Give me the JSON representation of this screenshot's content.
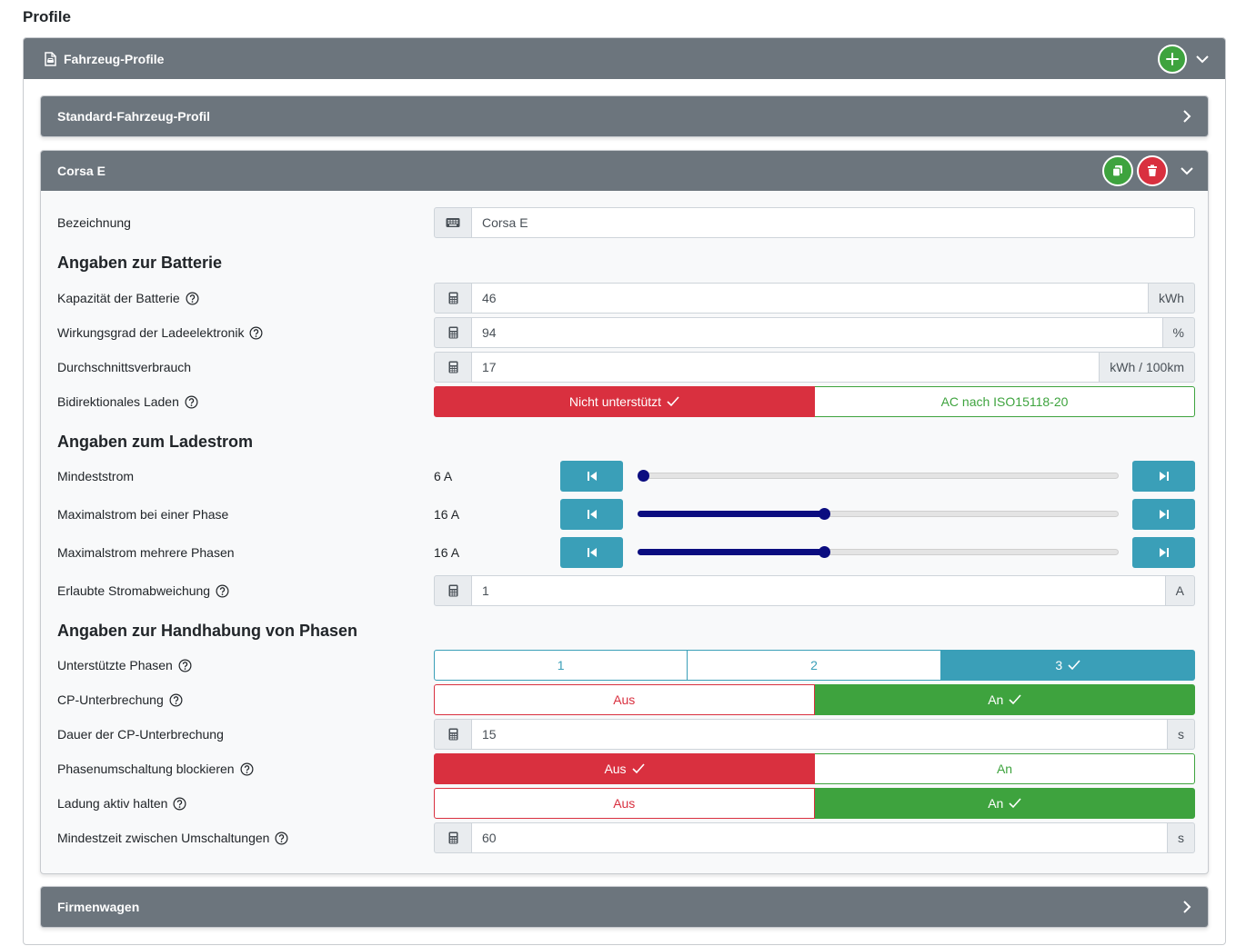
{
  "page": {
    "title": "Profile"
  },
  "vehicle_profiles": {
    "title": "Fahrzeug-Profile",
    "icons": {
      "header": "document-car-icon",
      "add": "plus-icon",
      "collapse": "chevron-down-icon"
    }
  },
  "standard_profile": {
    "title": "Standard-Fahrzeug-Profil",
    "icon": "chevron-right-icon"
  },
  "corsa": {
    "title": "Corsa E",
    "icons": {
      "copy": "copy-icon",
      "delete": "trash-icon",
      "collapse": "chevron-down-icon"
    },
    "name_label": "Bezeichnung",
    "name_value": "Corsa E",
    "battery_section": "Angaben zur Batterie",
    "capacity": {
      "label": "Kapazität der Batterie",
      "value": "46",
      "unit": "kWh"
    },
    "efficiency": {
      "label": "Wirkungsgrad der Ladeelektronik",
      "value": "94",
      "unit": "%"
    },
    "consumption": {
      "label": "Durchschnittsverbrauch",
      "value": "17",
      "unit": "kWh / 100km"
    },
    "bidirectional": {
      "label": "Bidirektionales Laden",
      "option_a": "Nicht unterstützt",
      "option_b": "AC nach ISO15118-20",
      "selected": "option_a"
    },
    "current_section": "Angaben zum Ladestrom",
    "min_current": {
      "label": "Mindeststrom",
      "display": "6 A",
      "value": 6,
      "min": 6,
      "max": 32
    },
    "max_current_one": {
      "label": "Maximalstrom bei einer Phase",
      "display": "16 A",
      "value": 16,
      "min": 6,
      "max": 32
    },
    "max_current_multi": {
      "label": "Maximalstrom mehrere Phasen",
      "display": "16 A",
      "value": 16,
      "min": 6,
      "max": 32
    },
    "deviation": {
      "label": "Erlaubte Stromabweichung",
      "value": "1",
      "unit": "A"
    },
    "phase_section": "Angaben zur Handhabung von Phasen",
    "phases": {
      "label": "Unterstützte Phasen",
      "options": [
        "1",
        "2",
        "3"
      ],
      "selected": "3"
    },
    "cp_interrupt": {
      "label": "CP-Unterbrechung",
      "off": "Aus",
      "on": "An",
      "selected": "on"
    },
    "cp_duration": {
      "label": "Dauer der CP-Unterbrechung",
      "value": "15",
      "unit": "s"
    },
    "block_switch": {
      "label": "Phasenumschaltung blockieren",
      "off": "Aus",
      "on": "An",
      "selected": "off"
    },
    "keep_active": {
      "label": "Ladung aktiv halten",
      "off": "Aus",
      "on": "An",
      "selected": "on"
    },
    "min_time": {
      "label": "Mindestzeit zwischen Umschaltungen",
      "value": "60",
      "unit": "s"
    }
  },
  "company_car": {
    "title": "Firmenwagen",
    "icon": "chevron-right-icon"
  },
  "colors": {
    "header_gray": "#6c757d",
    "green": "#3ea33e",
    "red": "#d9303f",
    "teal": "#3a9fb8",
    "slider": "#0b0d80"
  }
}
